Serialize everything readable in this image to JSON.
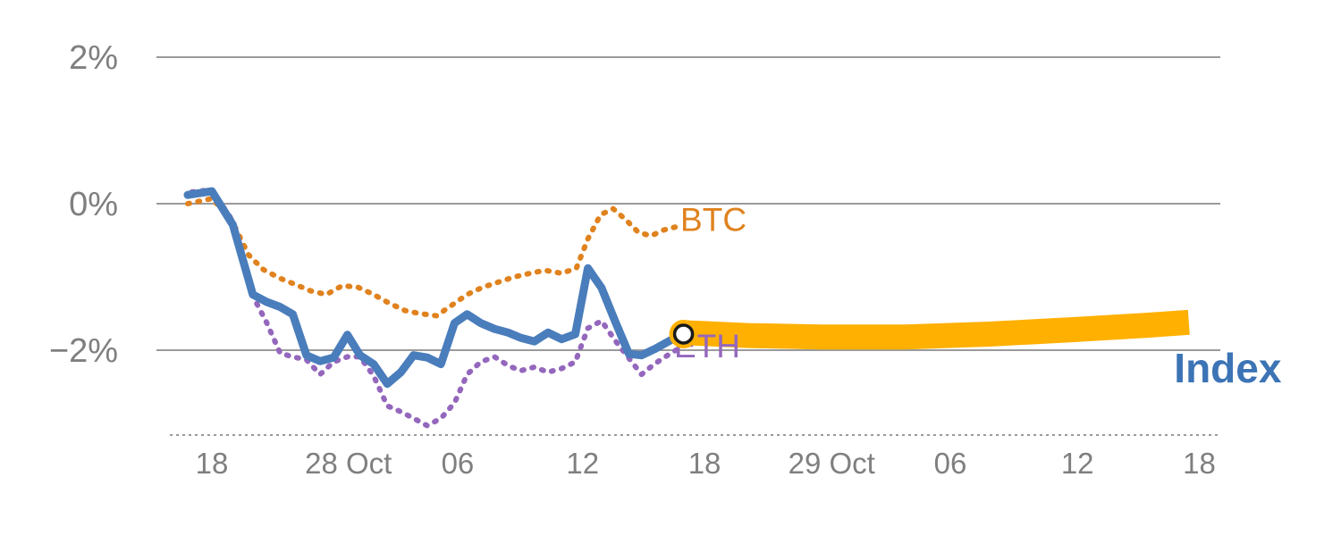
{
  "chart": {
    "background": "#ffffff",
    "grid_color": "#9a9a9a",
    "tick_label_color": "#7f7f7f",
    "axis_dash_color": "#9a9a9a"
  },
  "chart_data": {
    "type": "line",
    "title": "",
    "xlabel": "",
    "ylabel": "",
    "x_range": [
      0,
      100
    ],
    "ylim": [
      -3.3,
      2.7
    ],
    "grid": true,
    "legend_position": "inline-end-labels",
    "yticks": [
      {
        "value": 2,
        "label": "2%"
      },
      {
        "value": 0,
        "label": "0%"
      },
      {
        "value": -2,
        "label": "−2%"
      }
    ],
    "xticks": [
      {
        "x": 4.0,
        "label": "18"
      },
      {
        "x": 17.0,
        "label": "28 Oct"
      },
      {
        "x": 27.4,
        "label": "06"
      },
      {
        "x": 39.3,
        "label": "12"
      },
      {
        "x": 50.9,
        "label": "18"
      },
      {
        "x": 63.0,
        "label": "29 Oct"
      },
      {
        "x": 74.3,
        "label": "06"
      },
      {
        "x": 86.4,
        "label": "12"
      },
      {
        "x": 98.0,
        "label": "18"
      }
    ],
    "series": [
      {
        "name": "BTC",
        "color": "#e0821e",
        "style": "dotted",
        "width": 6,
        "points": [
          [
            1.7,
            0.0
          ],
          [
            4.0,
            0.07
          ],
          [
            5.8,
            -0.2
          ],
          [
            7.5,
            -0.7
          ],
          [
            8.9,
            -0.9
          ],
          [
            10.5,
            -1.02
          ],
          [
            11.9,
            -1.1
          ],
          [
            13.4,
            -1.19
          ],
          [
            14.9,
            -1.24
          ],
          [
            16.4,
            -1.12
          ],
          [
            17.9,
            -1.14
          ],
          [
            19.4,
            -1.24
          ],
          [
            20.9,
            -1.36
          ],
          [
            22.4,
            -1.46
          ],
          [
            23.8,
            -1.5
          ],
          [
            25.4,
            -1.53
          ],
          [
            26.8,
            -1.39
          ],
          [
            28.3,
            -1.24
          ],
          [
            29.8,
            -1.14
          ],
          [
            31.3,
            -1.07
          ],
          [
            32.8,
            -1.0
          ],
          [
            34.3,
            -0.95
          ],
          [
            35.7,
            -0.91
          ],
          [
            37.3,
            -0.95
          ],
          [
            38.7,
            -0.88
          ],
          [
            39.8,
            -0.48
          ],
          [
            41.0,
            -0.15
          ],
          [
            42.2,
            -0.07
          ],
          [
            43.4,
            -0.22
          ],
          [
            44.6,
            -0.39
          ],
          [
            45.8,
            -0.44
          ],
          [
            47.0,
            -0.36
          ],
          [
            48.1,
            -0.32
          ]
        ]
      },
      {
        "name": "ETH",
        "color": "#9467bd",
        "style": "dotted",
        "width": 6,
        "points": [
          [
            2.1,
            0.16
          ],
          [
            4.0,
            0.19
          ],
          [
            6.0,
            -0.24
          ],
          [
            7.9,
            -1.26
          ],
          [
            9.2,
            -1.62
          ],
          [
            10.5,
            -2.04
          ],
          [
            11.7,
            -2.09
          ],
          [
            13.0,
            -2.13
          ],
          [
            14.3,
            -2.33
          ],
          [
            15.6,
            -2.16
          ],
          [
            16.9,
            -2.09
          ],
          [
            18.1,
            -2.09
          ],
          [
            19.4,
            -2.35
          ],
          [
            20.7,
            -2.76
          ],
          [
            22.0,
            -2.84
          ],
          [
            23.2,
            -2.93
          ],
          [
            24.5,
            -3.03
          ],
          [
            25.8,
            -2.93
          ],
          [
            27.1,
            -2.72
          ],
          [
            28.3,
            -2.33
          ],
          [
            29.6,
            -2.16
          ],
          [
            30.9,
            -2.09
          ],
          [
            32.2,
            -2.21
          ],
          [
            33.4,
            -2.28
          ],
          [
            34.7,
            -2.23
          ],
          [
            36.0,
            -2.3
          ],
          [
            37.3,
            -2.25
          ],
          [
            38.6,
            -2.16
          ],
          [
            39.8,
            -1.7
          ],
          [
            41.1,
            -1.6
          ],
          [
            42.4,
            -1.87
          ],
          [
            43.7,
            -2.11
          ],
          [
            44.9,
            -2.33
          ],
          [
            46.2,
            -2.18
          ],
          [
            47.5,
            -2.06
          ],
          [
            48.3,
            -1.99
          ]
        ]
      },
      {
        "name": "Index",
        "color": "#4a7dbb",
        "style": "solid",
        "width": 9,
        "points": [
          [
            1.7,
            0.12
          ],
          [
            4.0,
            0.17
          ],
          [
            6.0,
            -0.29
          ],
          [
            7.9,
            -1.24
          ],
          [
            9.2,
            -1.34
          ],
          [
            10.5,
            -1.41
          ],
          [
            11.7,
            -1.51
          ],
          [
            13.0,
            -2.07
          ],
          [
            14.3,
            -2.15
          ],
          [
            15.6,
            -2.1
          ],
          [
            16.9,
            -1.79
          ],
          [
            18.1,
            -2.07
          ],
          [
            19.4,
            -2.19
          ],
          [
            20.7,
            -2.46
          ],
          [
            22.0,
            -2.3
          ],
          [
            23.2,
            -2.07
          ],
          [
            24.5,
            -2.1
          ],
          [
            25.8,
            -2.19
          ],
          [
            27.1,
            -1.63
          ],
          [
            28.3,
            -1.51
          ],
          [
            29.6,
            -1.63
          ],
          [
            30.9,
            -1.71
          ],
          [
            32.2,
            -1.76
          ],
          [
            33.4,
            -1.83
          ],
          [
            34.7,
            -1.88
          ],
          [
            36.0,
            -1.76
          ],
          [
            37.3,
            -1.85
          ],
          [
            38.6,
            -1.78
          ],
          [
            39.8,
            -0.88
          ],
          [
            41.1,
            -1.15
          ],
          [
            42.4,
            -1.61
          ],
          [
            43.7,
            -2.05
          ],
          [
            44.9,
            -2.07
          ],
          [
            46.2,
            -1.98
          ],
          [
            48.1,
            -1.83
          ]
        ]
      }
    ],
    "forecast_band": {
      "name": "forecast-band",
      "color": "#ffb000",
      "width": 28,
      "points": [
        [
          48.9,
          -1.76
        ],
        [
          55.0,
          -1.8
        ],
        [
          62.0,
          -1.82
        ],
        [
          70.0,
          -1.82
        ],
        [
          78.0,
          -1.78
        ],
        [
          86.0,
          -1.72
        ],
        [
          93.0,
          -1.66
        ],
        [
          97.0,
          -1.62
        ]
      ]
    },
    "marker": {
      "name": "forecast-start-marker",
      "x": 48.9,
      "y": -1.78,
      "outer_color": "#ffb000",
      "inner_color": "#ffffff",
      "ring_color": "#1a1a1a"
    },
    "labels": [
      {
        "id": "btc",
        "text": "BTC",
        "x": 48.6,
        "y": -0.37,
        "color": "#e0821e",
        "size": 37,
        "weight": "normal"
      },
      {
        "id": "eth",
        "text": "ETH",
        "x": 48.0,
        "y": -2.1,
        "color": "#9467bd",
        "size": 37,
        "weight": "normal"
      },
      {
        "id": "index",
        "text": "Index",
        "x": 95.6,
        "y": -2.44,
        "color": "#3c74b5",
        "size": 46,
        "weight": "bold"
      }
    ]
  }
}
